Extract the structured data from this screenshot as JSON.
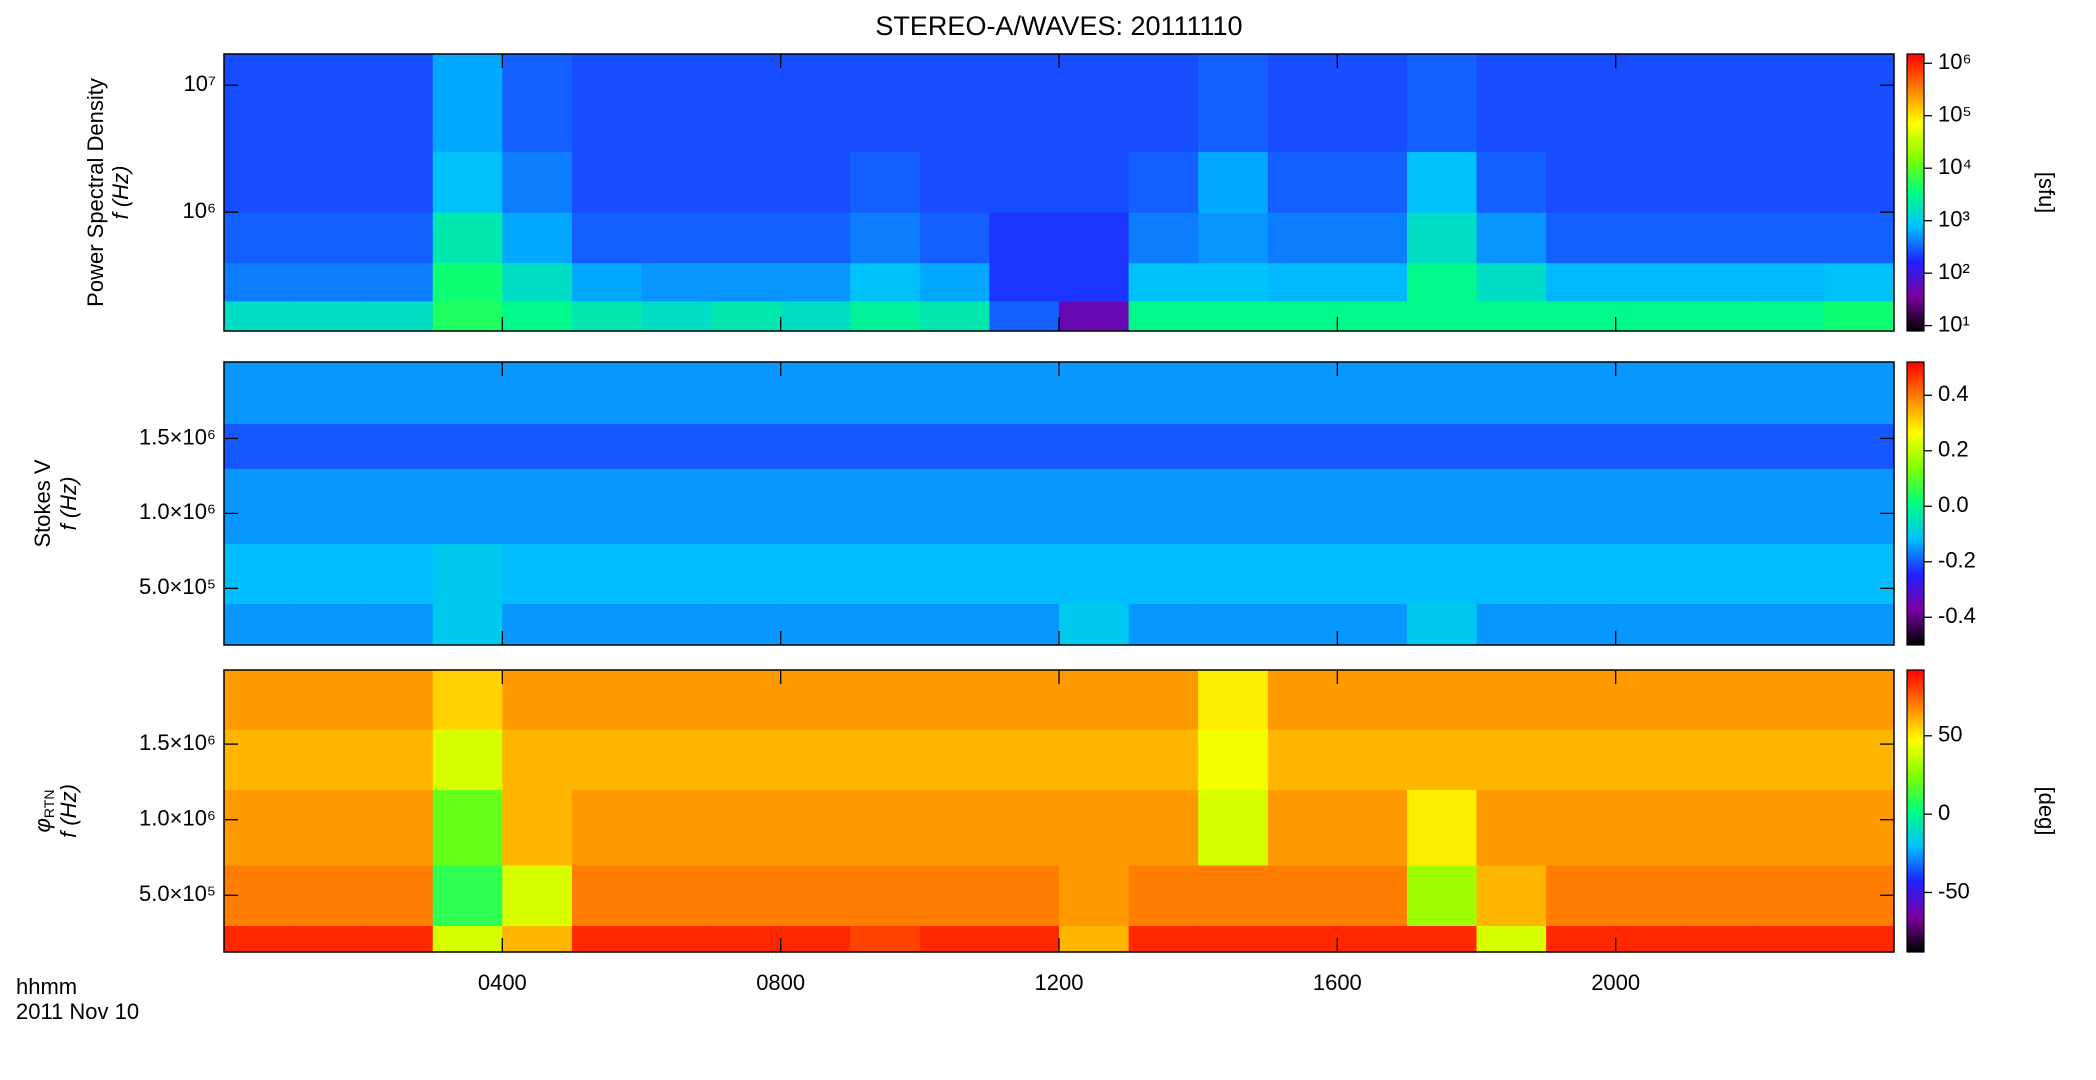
{
  "chart_data": {
    "type": "spectrogram",
    "title": "STEREO-A/WAVES: 20111110",
    "xlabel": "hhmm",
    "xlabel2": "2011 Nov 10",
    "xlim": [
      0,
      24
    ],
    "xticks": [
      {
        "value": 4,
        "label": "0400"
      },
      {
        "value": 8,
        "label": "0800"
      },
      {
        "value": 12,
        "label": "1200"
      },
      {
        "value": 16,
        "label": "1600"
      },
      {
        "value": 20,
        "label": "2000"
      }
    ],
    "time_edges": [
      0,
      1,
      2,
      3,
      4,
      5,
      6,
      7,
      8,
      9,
      10,
      11,
      12,
      13,
      14,
      15,
      16,
      17,
      18,
      19,
      20,
      21,
      22,
      23,
      24
    ],
    "colormap": [
      "#000000",
      "#7a00a0",
      "#2020ff",
      "#00c0ff",
      "#00ff80",
      "#80ff00",
      "#ffff00",
      "#ff8000",
      "#ff0000"
    ],
    "panels": [
      {
        "ylabel": "Power Spectral Density",
        "ylabel2": "f (Hz)",
        "yscale": "log",
        "ylim": [
          116000,
          17600000
        ],
        "yticks": [
          {
            "value": 1000000,
            "label": "10⁶"
          },
          {
            "value": 10000000,
            "label": "10⁷"
          }
        ],
        "freq_edges": [
          116000,
          200000,
          400000,
          1000000,
          3000000,
          17600000
        ],
        "z": [
          [
            1500,
            1500,
            1500,
            5000,
            3000,
            2000,
            1500,
            2000,
            1500,
            2500,
            2000,
            300,
            50,
            3000,
            3000,
            3000,
            3000,
            3000,
            3000,
            3000,
            3000,
            3000,
            3000,
            4000
          ],
          [
            400,
            400,
            400,
            4000,
            1500,
            600,
            500,
            500,
            500,
            800,
            600,
            200,
            200,
            800,
            800,
            700,
            700,
            3000,
            1500,
            700,
            700,
            700,
            700,
            800
          ],
          [
            300,
            300,
            300,
            2000,
            600,
            300,
            300,
            300,
            300,
            400,
            300,
            200,
            200,
            400,
            500,
            400,
            400,
            1500,
            500,
            300,
            300,
            300,
            300,
            300
          ],
          [
            250,
            250,
            250,
            800,
            400,
            250,
            250,
            250,
            250,
            300,
            250,
            250,
            250,
            300,
            600,
            300,
            300,
            800,
            300,
            250,
            250,
            250,
            250,
            250
          ],
          [
            250,
            250,
            250,
            600,
            300,
            250,
            250,
            250,
            250,
            250,
            250,
            250,
            250,
            250,
            300,
            250,
            250,
            300,
            250,
            250,
            250,
            250,
            250,
            250
          ]
        ],
        "cscale": "log",
        "clim": [
          7.9,
          1500000
        ],
        "cticks": [
          {
            "value": 10,
            "label": "10¹"
          },
          {
            "value": 100,
            "label": "10²"
          },
          {
            "value": 1000,
            "label": "10³"
          },
          {
            "value": 10000,
            "label": "10⁴"
          },
          {
            "value": 100000,
            "label": "10⁵"
          },
          {
            "value": 1000000,
            "label": "10⁶"
          }
        ],
        "clabel": "[sfu]"
      },
      {
        "ylabel": "Stokes V",
        "ylabel2": "f (Hz)",
        "yscale": "linear",
        "ylim": [
          122000,
          2010000
        ],
        "yticks": [
          {
            "value": 500000,
            "label": "5.0×10⁵"
          },
          {
            "value": 1000000,
            "label": "1.0×10⁶"
          },
          {
            "value": 1500000,
            "label": "1.5×10⁶"
          }
        ],
        "freq_edges": [
          122000,
          400000,
          800000,
          1300000,
          1600000,
          2010000
        ],
        "z": [
          [
            -0.15,
            -0.15,
            -0.15,
            -0.1,
            -0.15,
            -0.15,
            -0.15,
            -0.15,
            -0.15,
            -0.15,
            -0.15,
            -0.15,
            -0.1,
            -0.15,
            -0.15,
            -0.15,
            -0.15,
            -0.1,
            -0.15,
            -0.15,
            -0.15,
            -0.15,
            -0.15,
            -0.15
          ],
          [
            -0.12,
            -0.12,
            -0.12,
            -0.1,
            -0.12,
            -0.12,
            -0.12,
            -0.12,
            -0.12,
            -0.12,
            -0.12,
            -0.12,
            -0.12,
            -0.12,
            -0.12,
            -0.12,
            -0.12,
            -0.12,
            -0.12,
            -0.12,
            -0.12,
            -0.12,
            -0.12,
            -0.12
          ],
          [
            -0.15,
            -0.15,
            -0.15,
            -0.15,
            -0.15,
            -0.15,
            -0.15,
            -0.15,
            -0.15,
            -0.15,
            -0.15,
            -0.15,
            -0.15,
            -0.15,
            -0.15,
            -0.15,
            -0.15,
            -0.15,
            -0.15,
            -0.15,
            -0.15,
            -0.15,
            -0.15,
            -0.15
          ],
          [
            -0.2,
            -0.2,
            -0.2,
            -0.2,
            -0.2,
            -0.2,
            -0.2,
            -0.2,
            -0.2,
            -0.2,
            -0.2,
            -0.2,
            -0.2,
            -0.2,
            -0.2,
            -0.2,
            -0.2,
            -0.2,
            -0.2,
            -0.2,
            -0.2,
            -0.2,
            -0.2,
            -0.2
          ],
          [
            -0.15,
            -0.15,
            -0.15,
            -0.15,
            -0.15,
            -0.15,
            -0.15,
            -0.15,
            -0.15,
            -0.15,
            -0.15,
            -0.15,
            -0.15,
            -0.15,
            -0.15,
            -0.15,
            -0.15,
            -0.15,
            -0.15,
            -0.15,
            -0.15,
            -0.15,
            -0.15,
            -0.15
          ]
        ],
        "cscale": "linear",
        "clim": [
          -0.5,
          0.52
        ],
        "cticks": [
          0.4,
          0.2,
          {
            "value": 0,
            "label": "0.0"
          },
          -0.2,
          -0.4
        ]
      },
      {
        "ylabel": "φ",
        "ylabel_sub": "RTN",
        "ylabel2": "f (Hz)",
        "yscale": "linear",
        "ylim": [
          125000,
          1990000
        ],
        "yticks": [
          {
            "value": 500000,
            "label": "5.0×10⁵"
          },
          {
            "value": 1000000,
            "label": "1.0×10⁶"
          },
          {
            "value": 1500000,
            "label": "1.5×10⁶"
          }
        ],
        "freq_edges": [
          125000,
          300000,
          700000,
          1200000,
          1600000,
          1990000
        ],
        "z": [
          [
            85,
            85,
            85,
            40,
            60,
            85,
            85,
            85,
            85,
            80,
            85,
            85,
            60,
            85,
            85,
            85,
            85,
            85,
            40,
            85,
            85,
            85,
            85,
            85
          ],
          [
            70,
            70,
            70,
            10,
            40,
            70,
            70,
            70,
            70,
            70,
            70,
            70,
            65,
            70,
            70,
            70,
            70,
            30,
            60,
            70,
            70,
            70,
            70,
            70
          ],
          [
            65,
            65,
            65,
            20,
            60,
            65,
            65,
            65,
            65,
            65,
            65,
            65,
            65,
            65,
            40,
            65,
            65,
            50,
            65,
            65,
            65,
            65,
            65,
            65
          ],
          [
            60,
            60,
            60,
            40,
            60,
            60,
            60,
            60,
            60,
            60,
            60,
            60,
            60,
            60,
            45,
            60,
            60,
            60,
            60,
            60,
            60,
            60,
            60,
            60
          ],
          [
            65,
            65,
            65,
            55,
            65,
            65,
            65,
            65,
            65,
            65,
            65,
            65,
            65,
            65,
            50,
            65,
            65,
            65,
            65,
            65,
            65,
            65,
            65,
            65
          ]
        ],
        "cscale": "linear",
        "clim": [
          -88,
          92
        ],
        "cticks": [
          50,
          0,
          -50
        ],
        "clabel": "[deg]"
      }
    ]
  }
}
